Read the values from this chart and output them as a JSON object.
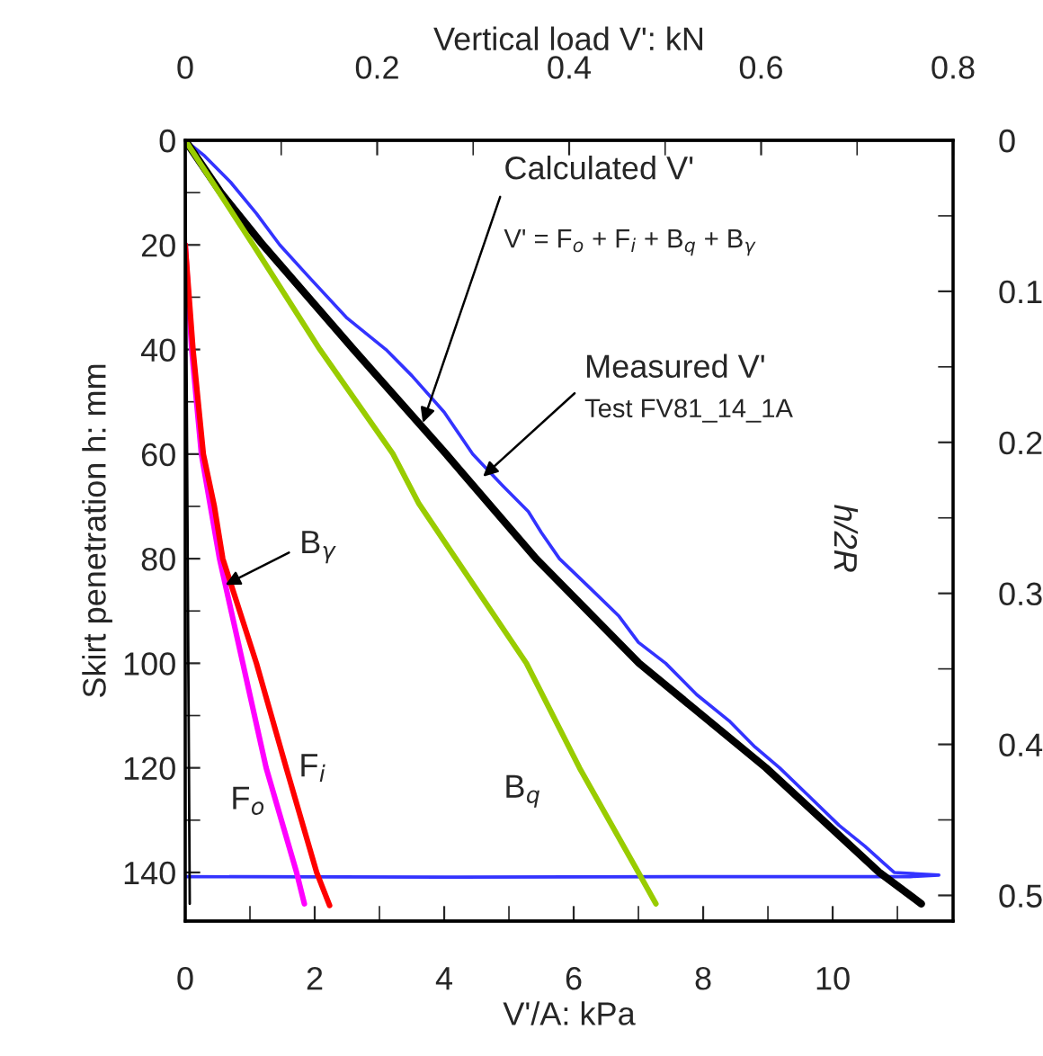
{
  "chart_data": {
    "type": "line",
    "xlabel": "V'/A: kPa",
    "ylabel": "Skirt penetration h: mm",
    "x2label": "Vertical load V': kN",
    "y2label": "h/2R",
    "xlim": [
      0,
      11.86
    ],
    "xticks": [
      0,
      2,
      4,
      6,
      8,
      10
    ],
    "ylim": [
      149.3,
      0
    ],
    "yticks": [
      0,
      20,
      40,
      60,
      80,
      100,
      120,
      140
    ],
    "x2lim": [
      0,
      0.8
    ],
    "x2ticks": [
      0,
      0.2,
      0.4,
      0.6,
      0.8
    ],
    "y2lim": [
      0.517,
      0
    ],
    "y2ticks": [
      0,
      0.1,
      0.2,
      0.3,
      0.4,
      0.5
    ],
    "grid": false,
    "legend": false,
    "marker": "none",
    "line_style": "solid",
    "series": [
      {
        "color": "#3333ff",
        "x": [
          0,
          0.3,
          0.7,
          1.1,
          1.46,
          1.9,
          2.5,
          3.1,
          3.5,
          4.0,
          4.44,
          4.9,
          5.3,
          5.5,
          5.78,
          6.2,
          6.7,
          7.0,
          7.42,
          7.9,
          8.4,
          8.8,
          9.18,
          9.6,
          10.1,
          10.5,
          10.77,
          10.95,
          11.64,
          11.2,
          8.0,
          4.0,
          0
        ],
        "values": [
          0,
          3,
          8,
          14,
          20,
          26,
          34,
          40,
          45,
          52,
          60,
          66,
          71,
          75,
          80,
          85,
          91,
          96,
          100,
          106,
          111,
          116,
          120,
          125,
          131,
          135,
          138,
          140,
          140.5,
          140.8,
          140.8,
          140.9,
          140.8
        ]
      },
      {
        "color": "#000000",
        "x": [
          0,
          0.55,
          1.2,
          2.6,
          4.03,
          5.42,
          7.01,
          8.97,
          10.72,
          11.37
        ],
        "values": [
          0,
          10,
          20,
          40,
          60,
          80,
          100,
          120,
          140,
          146
        ]
      },
      {
        "color": "#99cc00",
        "x": [
          0,
          1.05,
          2.08,
          3.21,
          3.61,
          5.27,
          6.09,
          7.0,
          7.27
        ],
        "values": [
          0,
          20,
          40,
          60,
          69.5,
          100,
          120,
          140,
          146
        ]
      },
      {
        "color": "#ff00ff",
        "x": [
          0,
          0.1,
          0.25,
          0.53,
          0.89,
          1.25,
          1.72,
          1.84
        ],
        "values": [
          20,
          40,
          60,
          80,
          100,
          120,
          140,
          146
        ]
      },
      {
        "color": "#ff0000",
        "x": [
          0,
          0.12,
          0.28,
          0.45,
          0.58,
          1.1,
          1.56,
          2.03,
          2.23
        ],
        "values": [
          20,
          40,
          60,
          70,
          80,
          100,
          120,
          140,
          146.3
        ]
      },
      {
        "color": "#000000",
        "x": [
          0,
          0.07
        ],
        "values": [
          0,
          146
        ]
      }
    ],
    "annotations": [
      {
        "text": "Calculated V'",
        "x": 3.67,
        "y": 54
      },
      "V' = F$_{o}$ + F$_{i}$ + B$_{q}$ + B$_{γ}$",
      {
        "text": "Measured V'",
        "x": 4.6,
        "y": 64.3
      },
      "Test FV81_14_1A",
      {
        "text": "B$_{γ}$",
        "x": 0.62,
        "y": 85
      },
      "F$_{i}$",
      "F$_{o}$",
      "B$_{q}$"
    ]
  }
}
